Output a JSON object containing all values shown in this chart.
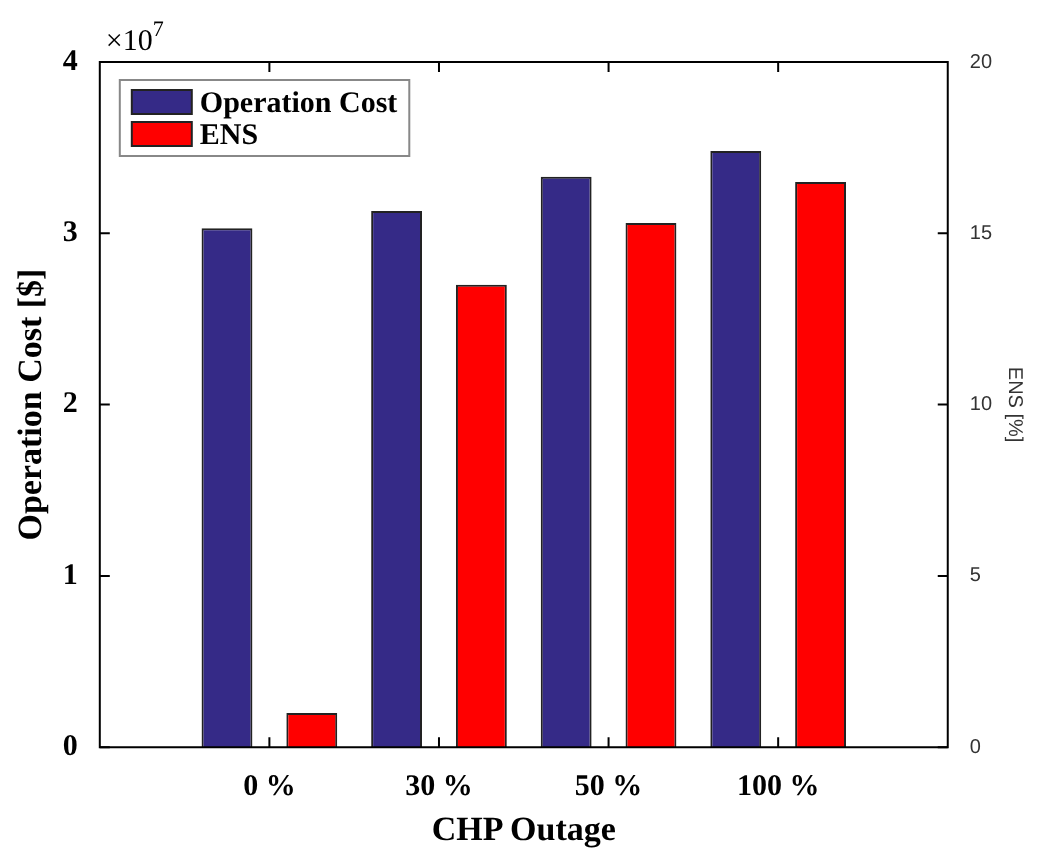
{
  "chart_data": {
    "type": "bar",
    "xlabel": "CHP Outage",
    "ylabel": "Operation Cost [$]",
    "y2label": "ENS [%]",
    "categories": [
      "0 %",
      "30 %",
      "50 %",
      "100 %"
    ],
    "series": [
      {
        "name": "Operation Cost",
        "color": "#352a87",
        "values": [
          3.03,
          3.13,
          3.33,
          3.48
        ]
      },
      {
        "name": "ENS",
        "color": "#ff0000",
        "axis": "y2",
        "values": [
          1.0,
          13.5,
          15.3,
          16.5
        ]
      }
    ],
    "ylim": [
      0,
      4
    ],
    "yticks": [
      0,
      1,
      2,
      3,
      4
    ],
    "y2lim": [
      0,
      20
    ],
    "y2ticks": [
      0,
      5,
      10,
      15,
      20
    ],
    "annotations": [
      "×10$^{7}$"
    ],
    "legend": "top left"
  }
}
